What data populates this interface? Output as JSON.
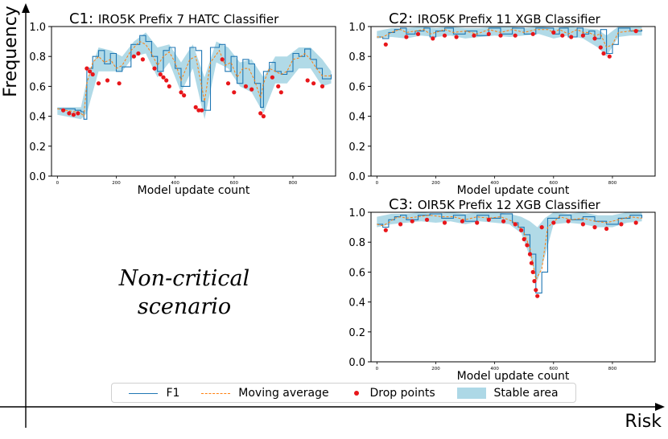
{
  "figure": {
    "y_axis_label": "Frequency",
    "x_axis_label": "Risk",
    "quadrant_text_line1": "Non-critical",
    "quadrant_text_line2": "scenario"
  },
  "legend": {
    "f1_label": "F1",
    "moving_average_label": "Moving average",
    "drop_points_label": "Drop points",
    "stable_area_label": "Stable area"
  },
  "colors": {
    "f1": "#1f77b4",
    "moving_average": "#ff7f0e",
    "drop_points": "#e8161a",
    "stable_area": "#add8e6",
    "axes": "#000000"
  },
  "chart_data": [
    {
      "id": "C1",
      "type": "line",
      "prefix": "C1:",
      "title": "IRO5K Prefix 7 HATC Classifier",
      "xlabel": "Model update count",
      "ylabel": "",
      "xlim": [
        -20,
        945
      ],
      "ylim": [
        0,
        1.0
      ],
      "xticks": [
        0,
        200,
        400,
        600,
        800
      ],
      "yticks": [
        0.0,
        0.2,
        0.4,
        0.6,
        0.8,
        1.0
      ],
      "f1_x": [
        0,
        30,
        60,
        80,
        90,
        100,
        120,
        140,
        160,
        180,
        200,
        220,
        250,
        280,
        300,
        320,
        340,
        360,
        380,
        400,
        420,
        450,
        470,
        490,
        500,
        520,
        550,
        570,
        590,
        610,
        630,
        650,
        670,
        690,
        700,
        720,
        740,
        760,
        780,
        800,
        820,
        840,
        860,
        880,
        900,
        930
      ],
      "f1_y": [
        0.45,
        0.45,
        0.44,
        0.43,
        0.38,
        0.72,
        0.8,
        0.84,
        0.75,
        0.82,
        0.7,
        0.73,
        0.88,
        0.94,
        0.9,
        0.8,
        0.7,
        0.84,
        0.86,
        0.72,
        0.6,
        0.86,
        0.84,
        0.5,
        0.44,
        0.86,
        0.88,
        0.7,
        0.8,
        0.62,
        0.78,
        0.75,
        0.62,
        0.46,
        0.7,
        0.76,
        0.7,
        0.68,
        0.7,
        0.82,
        0.8,
        0.85,
        0.78,
        0.72,
        0.65,
        0.68
      ],
      "ma_y": [
        0.45,
        0.44,
        0.43,
        0.42,
        0.4,
        0.62,
        0.76,
        0.8,
        0.76,
        0.78,
        0.72,
        0.74,
        0.84,
        0.9,
        0.88,
        0.82,
        0.74,
        0.8,
        0.83,
        0.76,
        0.64,
        0.78,
        0.8,
        0.6,
        0.5,
        0.76,
        0.84,
        0.74,
        0.76,
        0.66,
        0.72,
        0.72,
        0.64,
        0.52,
        0.62,
        0.72,
        0.7,
        0.68,
        0.7,
        0.78,
        0.79,
        0.82,
        0.78,
        0.72,
        0.67,
        0.67
      ],
      "stable_x": [
        0,
        80,
        100,
        140,
        180,
        220,
        260,
        300,
        340,
        380,
        420,
        460,
        500,
        540,
        580,
        620,
        660,
        700,
        740,
        780,
        820,
        860,
        900,
        930
      ],
      "stable_lo": [
        0.41,
        0.38,
        0.42,
        0.7,
        0.7,
        0.7,
        0.8,
        0.82,
        0.66,
        0.76,
        0.56,
        0.72,
        0.38,
        0.76,
        0.72,
        0.6,
        0.56,
        0.42,
        0.62,
        0.62,
        0.72,
        0.72,
        0.6,
        0.62
      ],
      "stable_hi": [
        0.46,
        0.46,
        0.64,
        0.86,
        0.84,
        0.8,
        0.9,
        0.96,
        0.86,
        0.88,
        0.76,
        0.88,
        0.66,
        0.9,
        0.86,
        0.76,
        0.78,
        0.66,
        0.8,
        0.8,
        0.86,
        0.86,
        0.78,
        0.7
      ],
      "drop_x": [
        20,
        40,
        55,
        70,
        100,
        110,
        120,
        140,
        170,
        210,
        260,
        275,
        290,
        330,
        350,
        360,
        370,
        380,
        420,
        430,
        470,
        480,
        490,
        560,
        580,
        600,
        640,
        660,
        690,
        700,
        730,
        750,
        760,
        850,
        870,
        900
      ],
      "drop_y": [
        0.44,
        0.42,
        0.41,
        0.42,
        0.72,
        0.7,
        0.68,
        0.62,
        0.64,
        0.62,
        0.8,
        0.82,
        0.78,
        0.72,
        0.68,
        0.66,
        0.64,
        0.6,
        0.56,
        0.54,
        0.46,
        0.44,
        0.44,
        0.78,
        0.62,
        0.56,
        0.6,
        0.58,
        0.42,
        0.4,
        0.66,
        0.6,
        0.56,
        0.64,
        0.62,
        0.6
      ]
    },
    {
      "id": "C2",
      "type": "line",
      "prefix": "C2:",
      "title": "IRO5K Prefix 11 XGB Classifier",
      "xlabel": "Model update count",
      "ylabel": "",
      "xlim": [
        -20,
        945
      ],
      "ylim": [
        0,
        1.0
      ],
      "xticks": [
        0,
        200,
        400,
        600,
        800
      ],
      "yticks": [
        0.0,
        0.2,
        0.4,
        0.6,
        0.8,
        1.0
      ],
      "f1_x": [
        0,
        20,
        40,
        60,
        80,
        100,
        130,
        160,
        180,
        200,
        230,
        260,
        300,
        340,
        380,
        420,
        460,
        500,
        540,
        580,
        600,
        620,
        650,
        680,
        700,
        720,
        740,
        760,
        780,
        800,
        820,
        860,
        900
      ],
      "f1_y": [
        0.93,
        0.92,
        0.96,
        0.98,
        0.99,
        0.95,
        0.97,
        0.99,
        0.93,
        0.97,
        0.99,
        0.95,
        0.97,
        0.94,
        0.99,
        0.95,
        0.99,
        0.95,
        0.99,
        0.99,
        0.95,
        0.99,
        0.93,
        0.99,
        0.95,
        0.97,
        0.92,
        0.98,
        0.82,
        0.88,
        0.99,
        0.97,
        0.98
      ],
      "ma_y": [
        0.93,
        0.93,
        0.95,
        0.97,
        0.98,
        0.96,
        0.97,
        0.98,
        0.95,
        0.96,
        0.98,
        0.96,
        0.97,
        0.95,
        0.98,
        0.96,
        0.98,
        0.96,
        0.98,
        0.98,
        0.96,
        0.98,
        0.95,
        0.98,
        0.96,
        0.96,
        0.94,
        0.95,
        0.86,
        0.88,
        0.96,
        0.97,
        0.98
      ],
      "stable_x": [
        0,
        50,
        100,
        150,
        200,
        250,
        300,
        350,
        400,
        450,
        500,
        550,
        600,
        650,
        700,
        750,
        780,
        820,
        860,
        900
      ],
      "stable_lo": [
        0.92,
        0.93,
        0.92,
        0.94,
        0.93,
        0.94,
        0.92,
        0.93,
        0.94,
        0.93,
        0.94,
        0.95,
        0.92,
        0.94,
        0.92,
        0.86,
        0.8,
        0.93,
        0.94,
        0.94
      ],
      "stable_hi": [
        0.97,
        0.99,
        0.99,
        1.0,
        0.99,
        1.0,
        0.99,
        0.99,
        1.0,
        1.0,
        0.99,
        1.0,
        0.99,
        1.0,
        0.99,
        0.98,
        0.94,
        1.0,
        1.0,
        1.0
      ],
      "drop_x": [
        30,
        100,
        140,
        190,
        230,
        270,
        330,
        380,
        420,
        470,
        530,
        600,
        630,
        660,
        700,
        740,
        760,
        770,
        790,
        880
      ],
      "drop_y": [
        0.88,
        0.93,
        0.95,
        0.92,
        0.94,
        0.93,
        0.94,
        0.95,
        0.94,
        0.94,
        0.95,
        0.96,
        0.94,
        0.93,
        0.94,
        0.92,
        0.86,
        0.82,
        0.8,
        0.97
      ]
    },
    {
      "id": "C3",
      "type": "line",
      "prefix": "C3:",
      "title": "OIR5K Prefix 12 XGB Classifier",
      "xlabel": "Model update count",
      "ylabel": "",
      "xlim": [
        -20,
        945
      ],
      "ylim": [
        0,
        1.0
      ],
      "xticks": [
        0,
        200,
        400,
        600,
        800
      ],
      "yticks": [
        0.0,
        0.2,
        0.4,
        0.6,
        0.8,
        1.0
      ],
      "f1_x": [
        0,
        20,
        40,
        60,
        80,
        100,
        140,
        180,
        220,
        260,
        300,
        340,
        380,
        420,
        460,
        480,
        500,
        520,
        540,
        560,
        580,
        620,
        660,
        700,
        740,
        780,
        820,
        860,
        900
      ],
      "f1_y": [
        0.92,
        0.9,
        0.95,
        0.97,
        0.98,
        0.95,
        0.98,
        0.99,
        0.96,
        0.98,
        0.94,
        0.98,
        0.96,
        0.99,
        0.93,
        0.9,
        0.85,
        0.72,
        0.46,
        0.6,
        0.96,
        0.98,
        0.95,
        0.97,
        0.94,
        0.92,
        0.96,
        0.98,
        0.96
      ],
      "ma_y": [
        0.92,
        0.91,
        0.93,
        0.96,
        0.97,
        0.96,
        0.97,
        0.98,
        0.97,
        0.97,
        0.95,
        0.97,
        0.96,
        0.97,
        0.94,
        0.91,
        0.86,
        0.76,
        0.55,
        0.62,
        0.9,
        0.97,
        0.95,
        0.96,
        0.94,
        0.93,
        0.95,
        0.97,
        0.96
      ],
      "stable_x": [
        0,
        50,
        100,
        150,
        200,
        250,
        300,
        350,
        400,
        450,
        490,
        520,
        545,
        570,
        600,
        650,
        700,
        750,
        800,
        850,
        900
      ],
      "stable_lo": [
        0.9,
        0.92,
        0.93,
        0.94,
        0.93,
        0.94,
        0.92,
        0.94,
        0.93,
        0.92,
        0.86,
        0.7,
        0.54,
        0.7,
        0.92,
        0.93,
        0.92,
        0.9,
        0.9,
        0.93,
        0.94
      ],
      "stable_hi": [
        0.97,
        0.99,
        0.99,
        1.0,
        0.99,
        1.0,
        0.99,
        1.0,
        1.0,
        0.99,
        0.97,
        0.94,
        0.9,
        0.96,
        1.0,
        0.99,
        1.0,
        0.98,
        0.98,
        1.0,
        1.0
      ],
      "drop_x": [
        30,
        80,
        120,
        170,
        230,
        290,
        340,
        380,
        430,
        470,
        490,
        500,
        510,
        520,
        525,
        530,
        535,
        540,
        545,
        560,
        600,
        650,
        700,
        740,
        780,
        830,
        880
      ],
      "drop_y": [
        0.88,
        0.92,
        0.94,
        0.95,
        0.93,
        0.94,
        0.93,
        0.95,
        0.94,
        0.92,
        0.88,
        0.82,
        0.78,
        0.72,
        0.66,
        0.6,
        0.54,
        0.48,
        0.44,
        0.9,
        0.93,
        0.94,
        0.92,
        0.9,
        0.89,
        0.92,
        0.93
      ]
    }
  ]
}
